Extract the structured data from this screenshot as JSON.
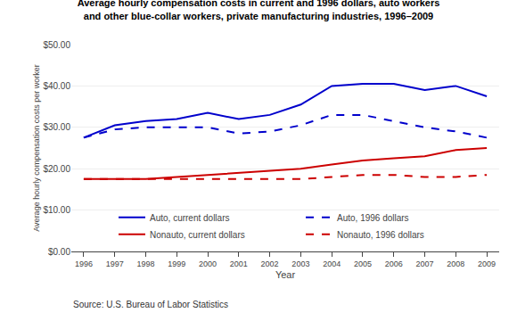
{
  "chart_data": {
    "type": "line",
    "title": "Average hourly compensation costs in current and 1996 dollars, auto workers",
    "subtitle": "and other blue-collar workers, private manufacturing industries, 1996–2009",
    "x_label": "Year",
    "y_label": "Average hourly compensation costs per worker",
    "annotations": [
      "Source: U.S. Bureau of Labor Statistics"
    ],
    "x": [
      1996,
      1997,
      1998,
      1999,
      2000,
      2001,
      2002,
      2003,
      2004,
      2005,
      2006,
      2007,
      2008,
      2009
    ],
    "series": [
      {
        "name": "Auto, current dollars",
        "color": "#0000cc",
        "line_style": "solid",
        "values": [
          27.5,
          30.5,
          31.5,
          32.0,
          33.5,
          32.0,
          33.0,
          35.5,
          40.0,
          40.5,
          40.5,
          39.0,
          40.0,
          37.5
        ]
      },
      {
        "name": "Auto, 1996 dollars",
        "color": "#0000cc",
        "line_style": "dashed",
        "values": [
          27.5,
          29.5,
          30.0,
          30.0,
          30.0,
          28.5,
          29.0,
          30.5,
          33.0,
          33.0,
          31.5,
          30.0,
          29.0,
          27.5
        ]
      },
      {
        "name": "Nonauto, current dollars",
        "color": "#cc0000",
        "line_style": "solid",
        "values": [
          17.5,
          17.5,
          17.5,
          18.0,
          18.5,
          19.0,
          19.5,
          20.0,
          21.0,
          22.0,
          22.5,
          23.0,
          24.5,
          25.0
        ]
      },
      {
        "name": "Nonauto, 1996 dollars",
        "color": "#cc0000",
        "line_style": "dashed",
        "values": [
          17.5,
          17.5,
          17.5,
          17.5,
          17.5,
          17.5,
          17.5,
          17.5,
          18.0,
          18.5,
          18.5,
          18.0,
          18.0,
          18.5
        ]
      }
    ],
    "xlim": [
      1995.6,
      2009.4
    ],
    "xticks": [
      1996,
      1997,
      1998,
      1999,
      2000,
      2001,
      2002,
      2003,
      2004,
      2005,
      2006,
      2007,
      2008,
      2009
    ],
    "ylim": [
      0,
      50
    ],
    "yticks": [
      {
        "value": 0,
        "label": "$0.00"
      },
      {
        "value": 10,
        "label": "$10.00"
      },
      {
        "value": 20,
        "label": "$20.00"
      },
      {
        "value": 30,
        "label": "$30.00"
      },
      {
        "value": 40,
        "label": "$40.00"
      },
      {
        "value": 50,
        "label": "$50.00"
      }
    ],
    "grid": true,
    "legend": "lower left"
  }
}
